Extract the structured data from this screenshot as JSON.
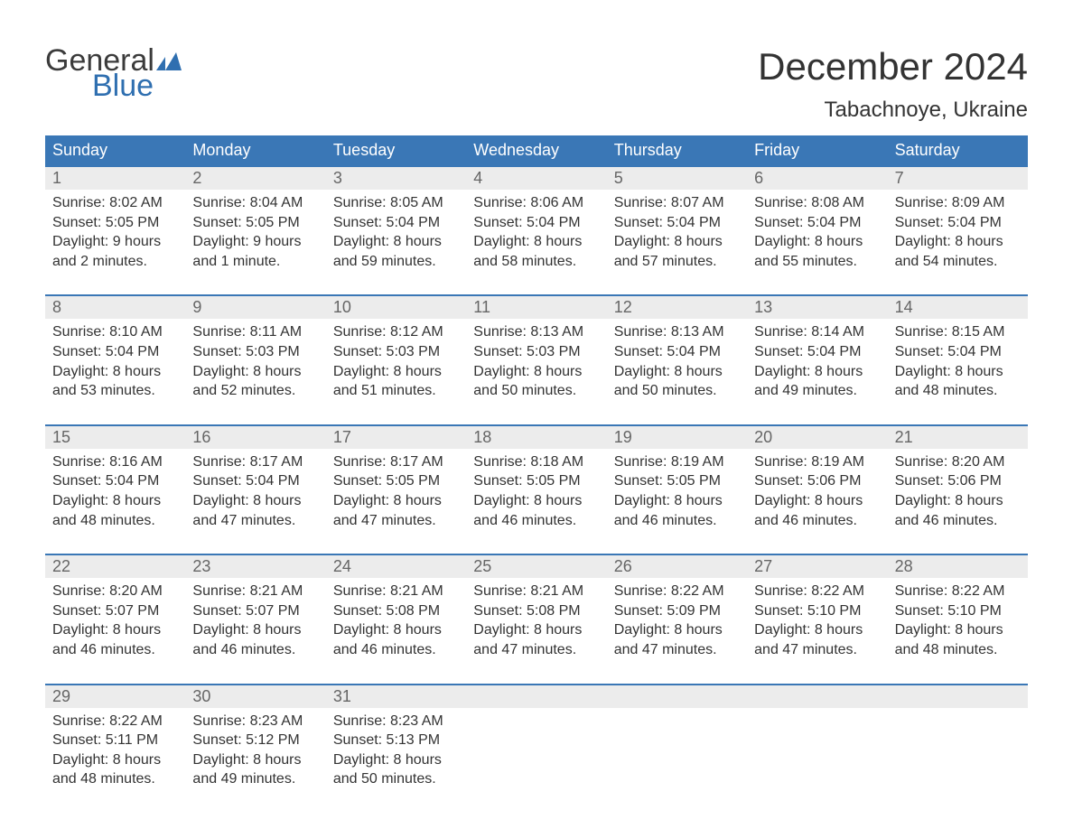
{
  "logo": {
    "text1": "General",
    "text2": "Blue",
    "flag_color": "#2f6fb0"
  },
  "title": "December 2024",
  "location": "Tabachnoye, Ukraine",
  "colors": {
    "header_bg": "#3a77b6",
    "header_text": "#ffffff",
    "week_border": "#3a77b6",
    "daynum_bg": "#ececec",
    "daynum_text": "#666666",
    "body_text": "#333333",
    "background": "#ffffff"
  },
  "typography": {
    "title_fontsize": 42,
    "location_fontsize": 24,
    "dow_fontsize": 18,
    "daynum_fontsize": 18,
    "body_fontsize": 16
  },
  "daysOfWeek": [
    "Sunday",
    "Monday",
    "Tuesday",
    "Wednesday",
    "Thursday",
    "Friday",
    "Saturday"
  ],
  "weeks": [
    [
      {
        "n": "1",
        "sunrise": "8:02 AM",
        "sunset": "5:05 PM",
        "daylight": "9 hours and 2 minutes."
      },
      {
        "n": "2",
        "sunrise": "8:04 AM",
        "sunset": "5:05 PM",
        "daylight": "9 hours and 1 minute."
      },
      {
        "n": "3",
        "sunrise": "8:05 AM",
        "sunset": "5:04 PM",
        "daylight": "8 hours and 59 minutes."
      },
      {
        "n": "4",
        "sunrise": "8:06 AM",
        "sunset": "5:04 PM",
        "daylight": "8 hours and 58 minutes."
      },
      {
        "n": "5",
        "sunrise": "8:07 AM",
        "sunset": "5:04 PM",
        "daylight": "8 hours and 57 minutes."
      },
      {
        "n": "6",
        "sunrise": "8:08 AM",
        "sunset": "5:04 PM",
        "daylight": "8 hours and 55 minutes."
      },
      {
        "n": "7",
        "sunrise": "8:09 AM",
        "sunset": "5:04 PM",
        "daylight": "8 hours and 54 minutes."
      }
    ],
    [
      {
        "n": "8",
        "sunrise": "8:10 AM",
        "sunset": "5:04 PM",
        "daylight": "8 hours and 53 minutes."
      },
      {
        "n": "9",
        "sunrise": "8:11 AM",
        "sunset": "5:03 PM",
        "daylight": "8 hours and 52 minutes."
      },
      {
        "n": "10",
        "sunrise": "8:12 AM",
        "sunset": "5:03 PM",
        "daylight": "8 hours and 51 minutes."
      },
      {
        "n": "11",
        "sunrise": "8:13 AM",
        "sunset": "5:03 PM",
        "daylight": "8 hours and 50 minutes."
      },
      {
        "n": "12",
        "sunrise": "8:13 AM",
        "sunset": "5:04 PM",
        "daylight": "8 hours and 50 minutes."
      },
      {
        "n": "13",
        "sunrise": "8:14 AM",
        "sunset": "5:04 PM",
        "daylight": "8 hours and 49 minutes."
      },
      {
        "n": "14",
        "sunrise": "8:15 AM",
        "sunset": "5:04 PM",
        "daylight": "8 hours and 48 minutes."
      }
    ],
    [
      {
        "n": "15",
        "sunrise": "8:16 AM",
        "sunset": "5:04 PM",
        "daylight": "8 hours and 48 minutes."
      },
      {
        "n": "16",
        "sunrise": "8:17 AM",
        "sunset": "5:04 PM",
        "daylight": "8 hours and 47 minutes."
      },
      {
        "n": "17",
        "sunrise": "8:17 AM",
        "sunset": "5:05 PM",
        "daylight": "8 hours and 47 minutes."
      },
      {
        "n": "18",
        "sunrise": "8:18 AM",
        "sunset": "5:05 PM",
        "daylight": "8 hours and 46 minutes."
      },
      {
        "n": "19",
        "sunrise": "8:19 AM",
        "sunset": "5:05 PM",
        "daylight": "8 hours and 46 minutes."
      },
      {
        "n": "20",
        "sunrise": "8:19 AM",
        "sunset": "5:06 PM",
        "daylight": "8 hours and 46 minutes."
      },
      {
        "n": "21",
        "sunrise": "8:20 AM",
        "sunset": "5:06 PM",
        "daylight": "8 hours and 46 minutes."
      }
    ],
    [
      {
        "n": "22",
        "sunrise": "8:20 AM",
        "sunset": "5:07 PM",
        "daylight": "8 hours and 46 minutes."
      },
      {
        "n": "23",
        "sunrise": "8:21 AM",
        "sunset": "5:07 PM",
        "daylight": "8 hours and 46 minutes."
      },
      {
        "n": "24",
        "sunrise": "8:21 AM",
        "sunset": "5:08 PM",
        "daylight": "8 hours and 46 minutes."
      },
      {
        "n": "25",
        "sunrise": "8:21 AM",
        "sunset": "5:08 PM",
        "daylight": "8 hours and 47 minutes."
      },
      {
        "n": "26",
        "sunrise": "8:22 AM",
        "sunset": "5:09 PM",
        "daylight": "8 hours and 47 minutes."
      },
      {
        "n": "27",
        "sunrise": "8:22 AM",
        "sunset": "5:10 PM",
        "daylight": "8 hours and 47 minutes."
      },
      {
        "n": "28",
        "sunrise": "8:22 AM",
        "sunset": "5:10 PM",
        "daylight": "8 hours and 48 minutes."
      }
    ],
    [
      {
        "n": "29",
        "sunrise": "8:22 AM",
        "sunset": "5:11 PM",
        "daylight": "8 hours and 48 minutes."
      },
      {
        "n": "30",
        "sunrise": "8:23 AM",
        "sunset": "5:12 PM",
        "daylight": "8 hours and 49 minutes."
      },
      {
        "n": "31",
        "sunrise": "8:23 AM",
        "sunset": "5:13 PM",
        "daylight": "8 hours and 50 minutes."
      },
      null,
      null,
      null,
      null
    ]
  ],
  "labels": {
    "sunrise": "Sunrise: ",
    "sunset": "Sunset: ",
    "daylight": "Daylight: "
  }
}
